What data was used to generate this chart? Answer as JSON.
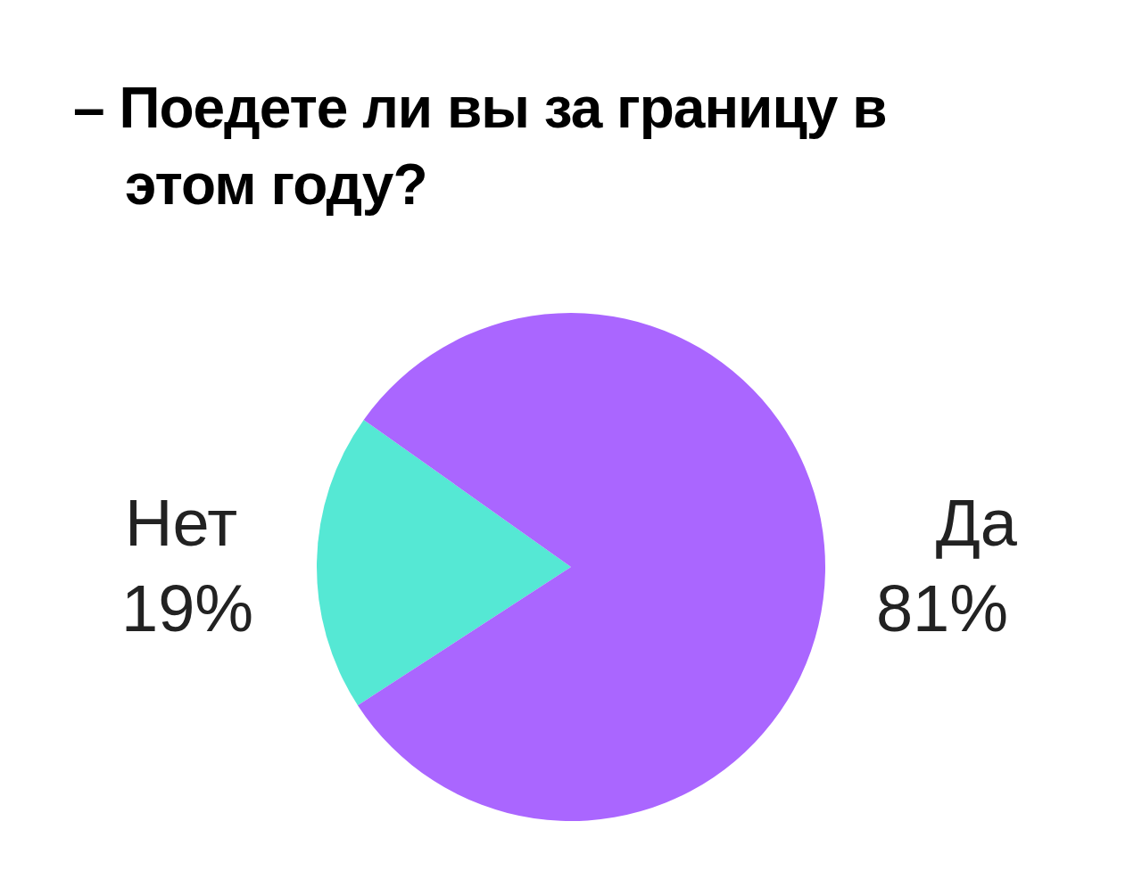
{
  "chart_data": {
    "type": "pie",
    "title": "– Поедете ли вы за границу в этом году?",
    "categories": [
      "Нет",
      "Да"
    ],
    "values": [
      19,
      81
    ],
    "colors": [
      "#55e8d4",
      "#aa66ff"
    ],
    "value_labels": [
      "19%",
      "81%"
    ]
  }
}
